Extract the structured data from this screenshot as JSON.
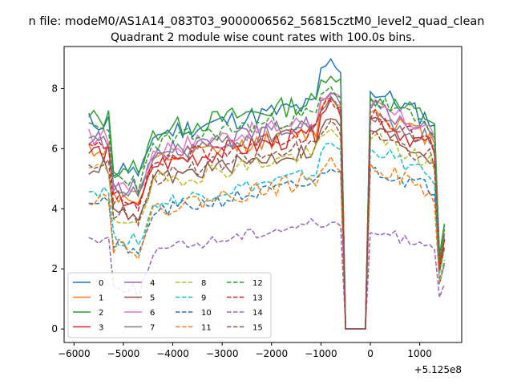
{
  "suptitle": "n file: modeM0/AS1A14_083T03_9000006562_56815cztM0_level2_quad_clean",
  "chart_data": {
    "type": "line",
    "title": "Quadrant 2 module wise count rates with 100.0s bins.",
    "xlabel": "",
    "ylabel": "",
    "x_offset_label": "+5.125e8",
    "xlim": [
      -6200,
      1850
    ],
    "ylim": [
      -0.45,
      9.4
    ],
    "x_ticks": [
      -6000,
      -5000,
      -4000,
      -3000,
      -2000,
      -1000,
      0,
      1000
    ],
    "x_tick_labels": [
      "−6000",
      "−5000",
      "−4000",
      "−3000",
      "−2000",
      "−1000",
      "0",
      "1000"
    ],
    "y_ticks": [
      0,
      2,
      4,
      6,
      8
    ],
    "y_tick_labels": [
      "0",
      "2",
      "4",
      "6",
      "8"
    ],
    "grid": false,
    "legend": {
      "placement": "lower-left",
      "columns": 4
    },
    "x_start": -5700,
    "x_step": 100,
    "x_end": 1500,
    "gap_start": -500,
    "gap_end": -100,
    "series": [
      {
        "name": "0",
        "color": "#1f77b4",
        "dashed": false,
        "base": 6.9,
        "peak": 8.9,
        "post": 7.9,
        "post_end": 6.8,
        "noise": 0.35,
        "seed": 11
      },
      {
        "name": "1",
        "color": "#ff7f0e",
        "dashed": false,
        "base": 6.0,
        "peak": 7.7,
        "post": 7.2,
        "post_end": 6.2,
        "noise": 0.3,
        "seed": 12
      },
      {
        "name": "2",
        "color": "#2ca02c",
        "dashed": false,
        "base": 7.0,
        "peak": 8.5,
        "post": 7.7,
        "post_end": 6.9,
        "noise": 0.35,
        "seed": 13
      },
      {
        "name": "3",
        "color": "#d62728",
        "dashed": false,
        "base": 5.9,
        "peak": 7.5,
        "post": 7.0,
        "post_end": 5.9,
        "noise": 0.35,
        "seed": 14
      },
      {
        "name": "4",
        "color": "#9467bd",
        "dashed": false,
        "base": 6.3,
        "peak": 7.8,
        "post": 7.3,
        "post_end": 6.4,
        "noise": 0.3,
        "seed": 15
      },
      {
        "name": "5",
        "color": "#8c564b",
        "dashed": false,
        "base": 5.4,
        "peak": 7.0,
        "post": 6.6,
        "post_end": 5.6,
        "noise": 0.3,
        "seed": 16
      },
      {
        "name": "6",
        "color": "#e377c2",
        "dashed": false,
        "base": 6.4,
        "peak": 7.9,
        "post": 7.4,
        "post_end": 6.5,
        "noise": 0.3,
        "seed": 17
      },
      {
        "name": "7",
        "color": "#7f7f7f",
        "dashed": false,
        "base": 6.2,
        "peak": 7.6,
        "post": 7.0,
        "post_end": 6.2,
        "noise": 0.3,
        "seed": 18
      },
      {
        "name": "8",
        "color": "#bcbd22",
        "dashed": true,
        "base": 5.3,
        "peak": 6.6,
        "post": 6.3,
        "post_end": 5.4,
        "noise": 0.3,
        "seed": 19
      },
      {
        "name": "9",
        "color": "#17becf",
        "dashed": true,
        "base": 4.6,
        "peak": 6.2,
        "post": 6.0,
        "post_end": 4.9,
        "noise": 0.25,
        "seed": 20
      },
      {
        "name": "10",
        "color": "#1f77b4",
        "dashed": true,
        "base": 4.3,
        "peak": 5.4,
        "post": 5.3,
        "post_end": 4.6,
        "noise": 0.25,
        "seed": 21
      },
      {
        "name": "11",
        "color": "#ff7f0e",
        "dashed": true,
        "base": 4.4,
        "peak": 5.6,
        "post": 5.5,
        "post_end": 4.3,
        "noise": 0.3,
        "seed": 22
      },
      {
        "name": "12",
        "color": "#2ca02c",
        "dashed": true,
        "base": 6.6,
        "peak": 8.0,
        "post": 7.6,
        "post_end": 6.6,
        "noise": 0.3,
        "seed": 23
      },
      {
        "name": "13",
        "color": "#d62728",
        "dashed": true,
        "base": 6.0,
        "peak": 7.6,
        "post": 7.0,
        "post_end": 6.0,
        "noise": 0.3,
        "seed": 24
      },
      {
        "name": "14",
        "color": "#9467bd",
        "dashed": true,
        "base": 3.0,
        "peak": 3.6,
        "post": 3.2,
        "post_end": 2.8,
        "noise": 0.2,
        "seed": 25
      },
      {
        "name": "15",
        "color": "#8c564b",
        "dashed": true,
        "base": 5.5,
        "peak": 6.8,
        "post": 6.4,
        "post_end": 5.6,
        "noise": 0.3,
        "seed": 26
      }
    ]
  }
}
